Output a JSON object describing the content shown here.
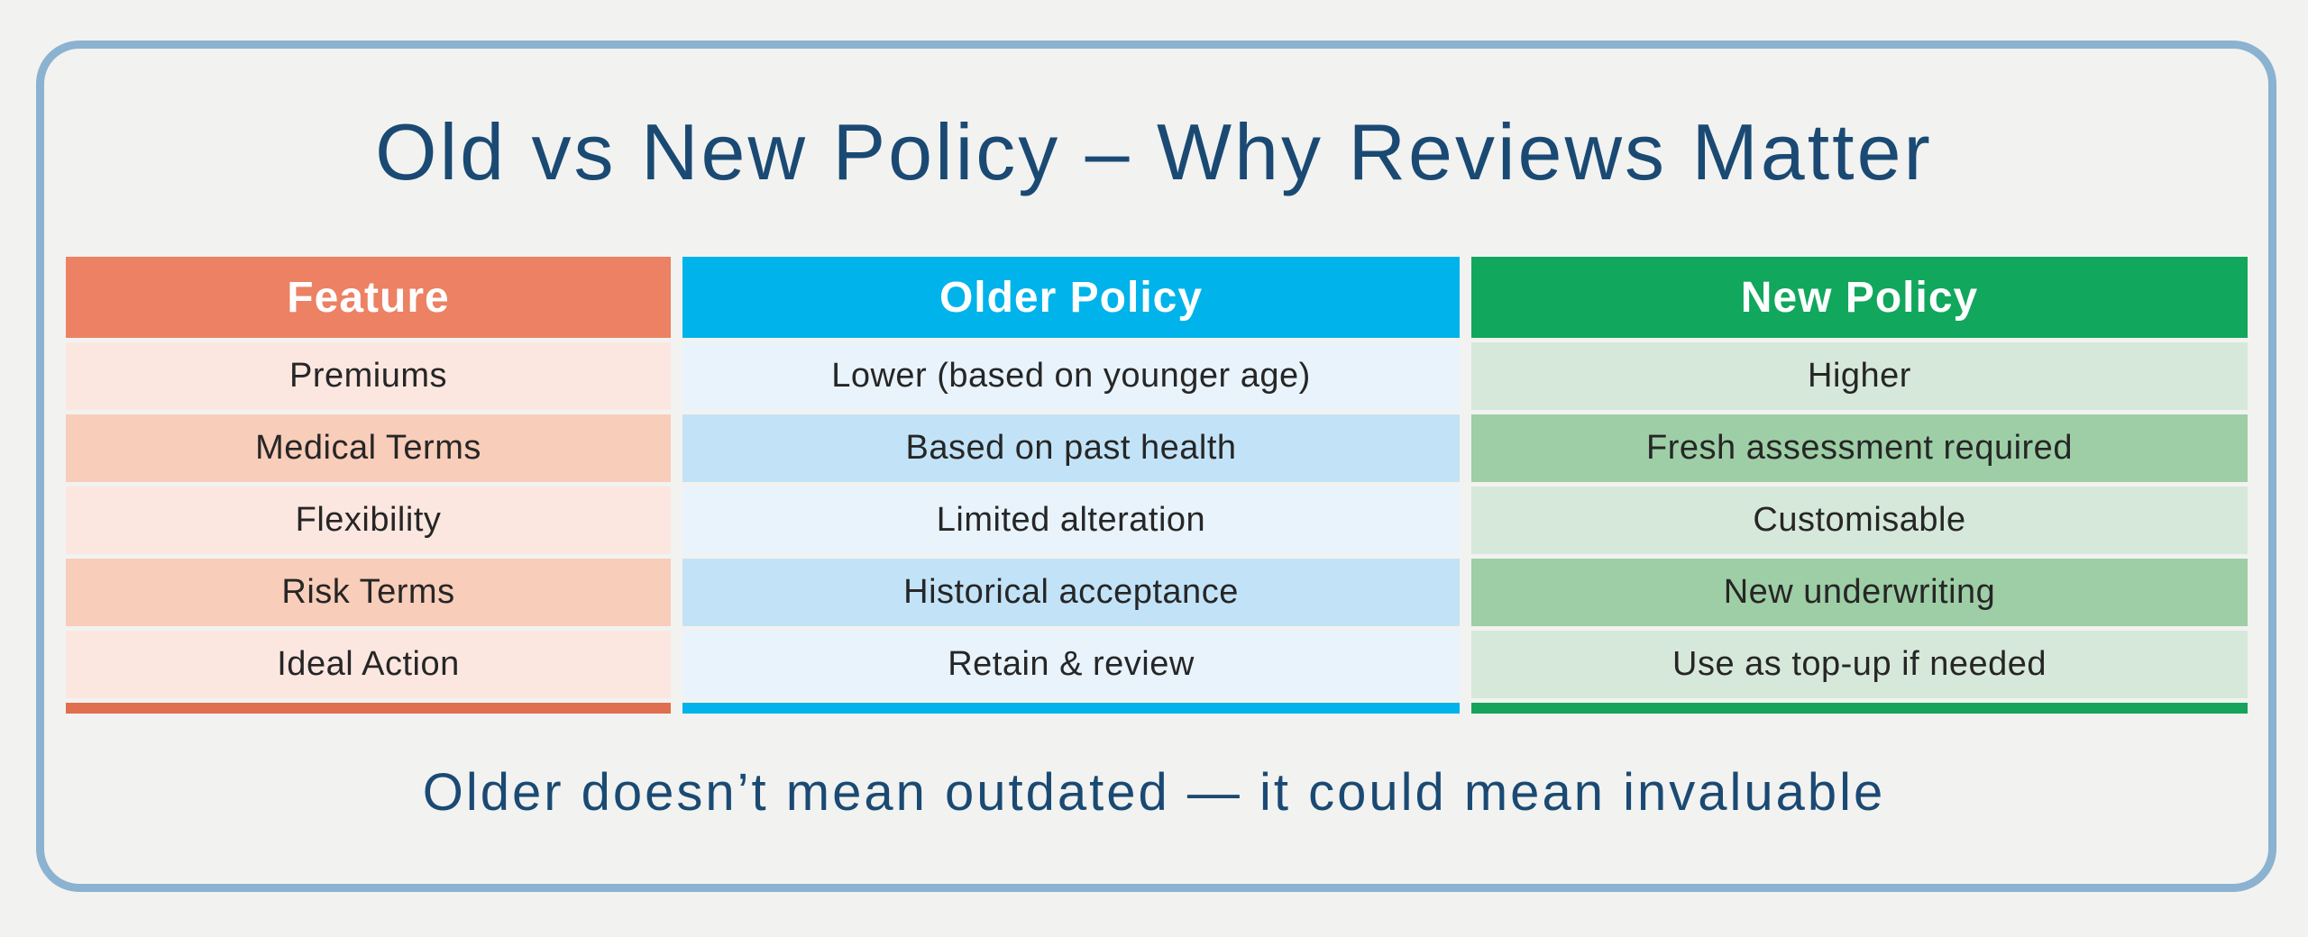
{
  "title": "Old vs New Policy – Why Reviews Matter",
  "tagline": "Older doesn’t mean outdated — it could mean invaluable",
  "table": {
    "columns": [
      {
        "label": "Feature"
      },
      {
        "label": "Older Policy"
      },
      {
        "label": "New Policy"
      }
    ],
    "rows": [
      {
        "feature": "Premiums",
        "older": "Lower (based on younger age)",
        "new": "Higher"
      },
      {
        "feature": "Medical Terms",
        "older": "Based on past health",
        "new": "Fresh assessment required"
      },
      {
        "feature": "Flexibility",
        "older": "Limited alteration",
        "new": "Customisable"
      },
      {
        "feature": "Risk Terms",
        "older": "Historical acceptance",
        "new": "New underwriting"
      },
      {
        "feature": "Ideal Action",
        "older": "Retain & review",
        "new": "Use as top-up if needed"
      }
    ]
  },
  "colors": {
    "page_bg": "#F2F2F0",
    "card_border": "#8BB2D0",
    "navy": "#1A4A73",
    "ink": "#262626",
    "salmon": "#EC8163",
    "cyan": "#00B3EA",
    "green": "#11A75D",
    "pink_light": "#FCE7E0",
    "pink_mid": "#F8CDBA",
    "blue_light": "#E8F3FC",
    "blue_mid": "#C2E3F7",
    "green_light": "#D6E8DA",
    "green_mid": "#9ECEA6",
    "stripe_salmon": "#DF6F4E",
    "stripe_cyan": "#00B3EA",
    "stripe_green": "#16A45A"
  }
}
